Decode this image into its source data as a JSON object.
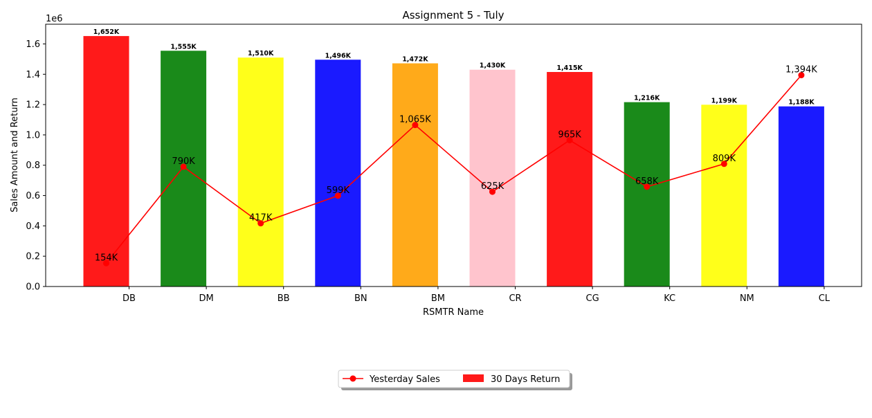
{
  "chart_data": {
    "type": "bar",
    "title": "Assignment 5 - Tuly",
    "xlabel": "RSMTR Name",
    "ylabel": "Sales Amount and Return",
    "y_offset_label": "1e6",
    "ylim": [
      0,
      1.73
    ],
    "yticks": [
      "0.0",
      "0.2",
      "0.4",
      "0.6",
      "0.8",
      "1.0",
      "1.2",
      "1.4",
      "1.6"
    ],
    "categories": [
      "DB",
      "DM",
      "BB",
      "BN",
      "BM",
      "CR",
      "CG",
      "KC",
      "NM",
      "CL"
    ],
    "series": [
      {
        "name": "30 Days Return",
        "type": "bar",
        "values": [
          1652000,
          1555000,
          1510000,
          1496000,
          1472000,
          1430000,
          1415000,
          1216000,
          1199000,
          1188000
        ],
        "labels": [
          "1,652K",
          "1,555K",
          "1,510K",
          "1,496K",
          "1,472K",
          "1,430K",
          "1,415K",
          "1,216K",
          "1,199K",
          "1,188K"
        ],
        "colors": [
          "#ff1a1a",
          "#1a8a1a",
          "#ffff1a",
          "#1a1aff",
          "#ffaa1a",
          "#ffc4cd",
          "#ff1a1a",
          "#1a8a1a",
          "#ffff1a",
          "#1a1aff"
        ]
      },
      {
        "name": "Yesterday Sales",
        "type": "line",
        "color": "#ff0000",
        "values": [
          154000,
          790000,
          417000,
          599000,
          1065000,
          625000,
          965000,
          658000,
          809000,
          1394000
        ],
        "labels": [
          "154K",
          "790K",
          "417K",
          "599K",
          "1,065K",
          "625K",
          "965K",
          "658K",
          "809K",
          "1,394K"
        ]
      }
    ],
    "legend": {
      "placement": "bottom-center",
      "entries": [
        "Yesterday Sales",
        "30 Days Return"
      ]
    },
    "grid": false
  }
}
